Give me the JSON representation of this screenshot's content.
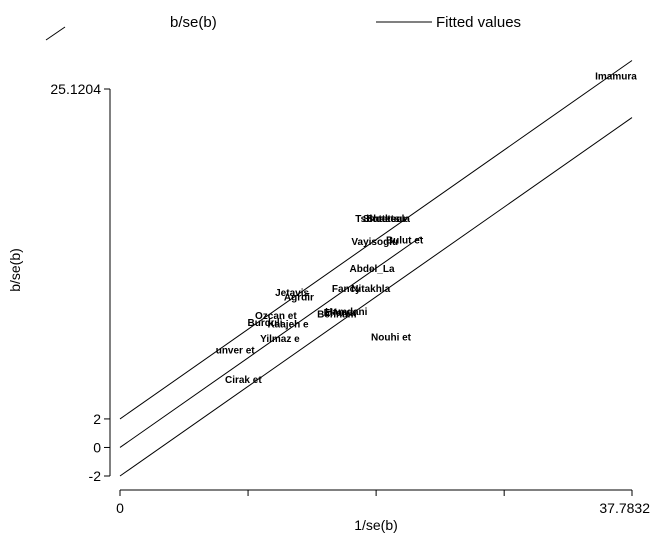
{
  "chart_data": {
    "type": "scatter",
    "subtype": "galbraith",
    "xlabel": "1/se(b)",
    "ylabel": "b/se(b)",
    "xticks": [
      {
        "value": 0,
        "label": "0"
      },
      {
        "value": 37.7832,
        "label": "37.7832"
      }
    ],
    "xminor": [
      9.45,
      18.9,
      28.35
    ],
    "yticks": [
      {
        "value": -2,
        "label": "-2"
      },
      {
        "value": 0,
        "label": "0"
      },
      {
        "value": 2,
        "label": "2"
      },
      {
        "value": 25.1204,
        "label": "25.1204"
      }
    ],
    "xlim": [
      0,
      37.7832
    ],
    "ylim": [
      -2,
      25.1204
    ],
    "legend": {
      "position": "top",
      "items": [
        {
          "label": "b/se(b)",
          "symbol": "diagonal"
        },
        {
          "label": "Fitted values",
          "symbol": "line"
        }
      ]
    },
    "fitted_line": {
      "slope": 0.6648,
      "intercept": 0,
      "band": 2,
      "x_end": 22.2
    },
    "points": [
      {
        "label": "Imamura",
        "x": 36.6,
        "y": 25.8
      },
      {
        "label": "Tshotetsu",
        "x": 19.1,
        "y": 15.8
      },
      {
        "label": "Shotetsu",
        "x": 19.5,
        "y": 15.8
      },
      {
        "label": "Shakeela",
        "x": 19.8,
        "y": 15.8
      },
      {
        "label": "Vayisoglu",
        "x": 18.8,
        "y": 14.2
      },
      {
        "label": "Bulut et",
        "x": 21.0,
        "y": 14.3
      },
      {
        "label": "Abdel_La",
        "x": 18.6,
        "y": 12.3
      },
      {
        "label": "Fancy",
        "x": 16.7,
        "y": 10.9
      },
      {
        "label": "Nitakhla",
        "x": 18.5,
        "y": 10.9
      },
      {
        "label": "Jetavis",
        "x": 12.7,
        "y": 10.6
      },
      {
        "label": "Agrdir",
        "x": 13.2,
        "y": 10.3
      },
      {
        "label": "Hamdani",
        "x": 16.7,
        "y": 9.3
      },
      {
        "label": "Elfarra",
        "x": 16.2,
        "y": 9.2
      },
      {
        "label": "Behnam",
        "x": 16.0,
        "y": 9.1
      },
      {
        "label": "Ozcan et",
        "x": 11.5,
        "y": 9.0
      },
      {
        "label": "Burduli",
        "x": 10.7,
        "y": 8.5
      },
      {
        "label": "Kaajeh e",
        "x": 12.4,
        "y": 8.4
      },
      {
        "label": "Yilmaz e",
        "x": 11.8,
        "y": 7.4
      },
      {
        "label": "Nouhi et",
        "x": 20.0,
        "y": 7.5
      },
      {
        "label": "unver et",
        "x": 8.5,
        "y": 6.6
      },
      {
        "label": "Cirak et",
        "x": 9.1,
        "y": 4.5
      }
    ]
  }
}
